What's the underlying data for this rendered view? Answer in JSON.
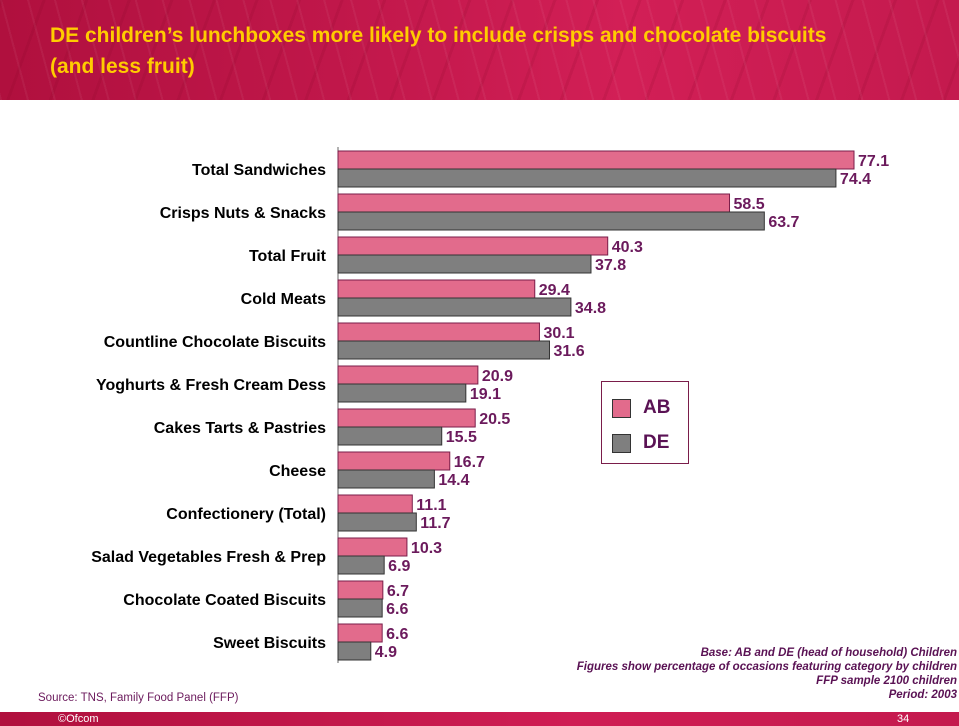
{
  "slide": {
    "title": "DE children’s lunchboxes more likely to include crisps and chocolate biscuits (and less fruit)",
    "source": "Source: TNS, Family Food Panel (FFP)",
    "footer_left": "©Ofcom",
    "page_number": "34",
    "note_lines": [
      "Base: AB and DE (head of household) Children",
      "Figures show percentage of occasions featuring category by children",
      "FFP sample 2100 children",
      "Period: 2003"
    ]
  },
  "colors": {
    "ab": "#e26b8c",
    "de": "#7f7f7f",
    "label_value": "#6b1a5c",
    "header": "#c0174a",
    "title_text": "#ffcc00"
  },
  "legend": {
    "ab_label": "AB",
    "de_label": "DE"
  },
  "chart_data": {
    "type": "bar",
    "orientation": "horizontal",
    "categories": [
      "Total Sandwiches",
      "Crisps Nuts & Snacks",
      "Total Fruit",
      "Cold Meats",
      "Countline Chocolate Biscuits",
      "Yoghurts & Fresh Cream Dess",
      "Cakes Tarts & Pastries",
      "Cheese",
      "Confectionery (Total)",
      "Salad Vegetables Fresh & Prep",
      "Chocolate Coated Biscuits",
      "Sweet Biscuits"
    ],
    "series": [
      {
        "name": "AB",
        "values": [
          77.1,
          58.5,
          40.3,
          29.4,
          30.1,
          20.9,
          20.5,
          16.7,
          11.1,
          10.3,
          6.7,
          6.6
        ]
      },
      {
        "name": "DE",
        "values": [
          74.4,
          63.7,
          37.8,
          34.8,
          31.6,
          19.1,
          15.5,
          14.4,
          11.7,
          6.9,
          6.6,
          4.9
        ]
      }
    ],
    "xlim": [
      0,
      77.1
    ],
    "legend_position": "right",
    "grid": false
  }
}
